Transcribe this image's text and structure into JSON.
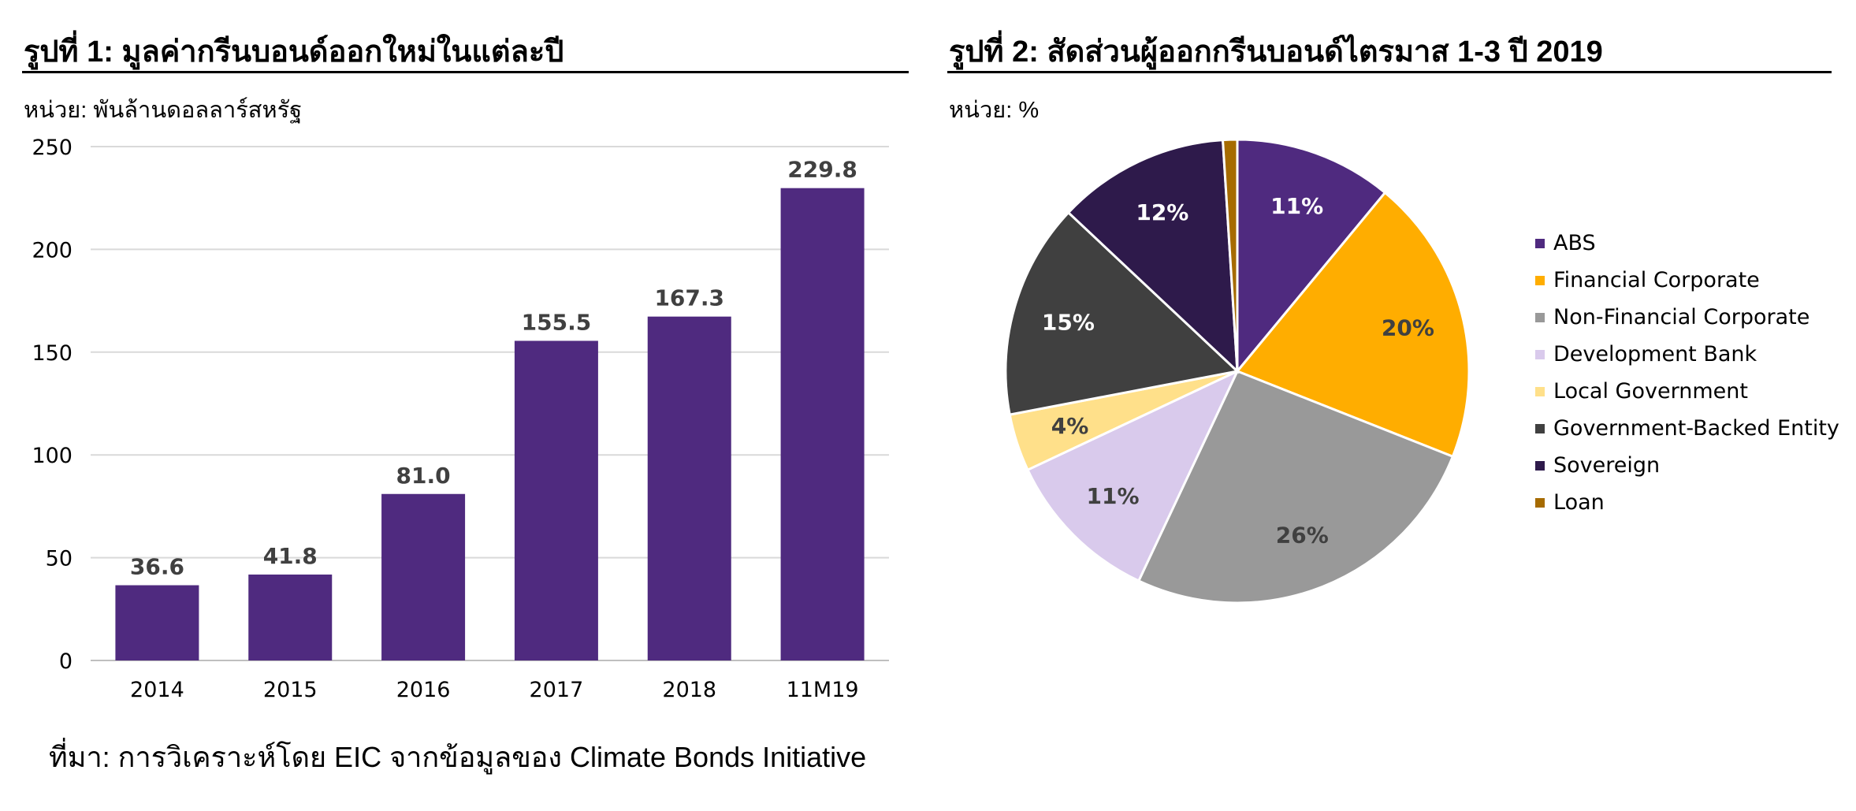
{
  "figure1": {
    "title": "รูปที่ 1: มูลค่ากรีนบอนด์ออกใหม่ในแต่ละปี",
    "unit": "หน่วย: พันล้านดอลลาร์สหรัฐ",
    "source": "ที่มา: การวิเคราะห์โดย EIC จากข้อมูลของ Climate Bonds Initiative"
  },
  "figure2": {
    "title": "รูปที่ 2: สัดส่วนผู้ออกกรีนบอนด์ไตรมาส 1-3 ปี 2019",
    "unit": "หน่วย: %"
  },
  "chart_data": [
    {
      "type": "bar",
      "categories": [
        "2014",
        "2015",
        "2016",
        "2017",
        "2018",
        "11M19"
      ],
      "values": [
        36.6,
        41.8,
        81.0,
        155.5,
        167.3,
        229.8
      ],
      "value_labels": [
        "36.6",
        "41.8",
        "81.0",
        "155.5",
        "167.3",
        "229.8"
      ],
      "ylim": [
        0,
        250
      ],
      "yticks": [
        0,
        50,
        100,
        150,
        200,
        250
      ],
      "grid": true,
      "bar_color": "#4F2A7F",
      "label_color": "#404040"
    },
    {
      "type": "pie",
      "slices": [
        {
          "name": "ABS",
          "value": 11,
          "label": "11%",
          "color": "#4F2A7F",
          "label_color": "#FFFFFF"
        },
        {
          "name": "Financial Corporate",
          "value": 20,
          "label": "20%",
          "color": "#FFAD00",
          "label_color": "#404040"
        },
        {
          "name": "Non-Financial Corporate",
          "value": 26,
          "label": "26%",
          "color": "#999999",
          "label_color": "#404040"
        },
        {
          "name": "Development Bank",
          "value": 11,
          "label": "11%",
          "color": "#D9CAEC",
          "label_color": "#404040"
        },
        {
          "name": "Local Government",
          "value": 4,
          "label": "4%",
          "color": "#FFE08A",
          "label_color": "#404040"
        },
        {
          "name": "Government-Backed Entity",
          "value": 15,
          "label": "15%",
          "color": "#404040",
          "label_color": "#FFFFFF"
        },
        {
          "name": "Sovereign",
          "value": 12,
          "label": "12%",
          "color": "#2E1A4B",
          "label_color": "#FFFFFF"
        },
        {
          "name": "Loan",
          "value": 1,
          "label": "",
          "color": "#A66B00",
          "label_color": "#FFFFFF"
        }
      ],
      "legend_position": "right"
    }
  ]
}
